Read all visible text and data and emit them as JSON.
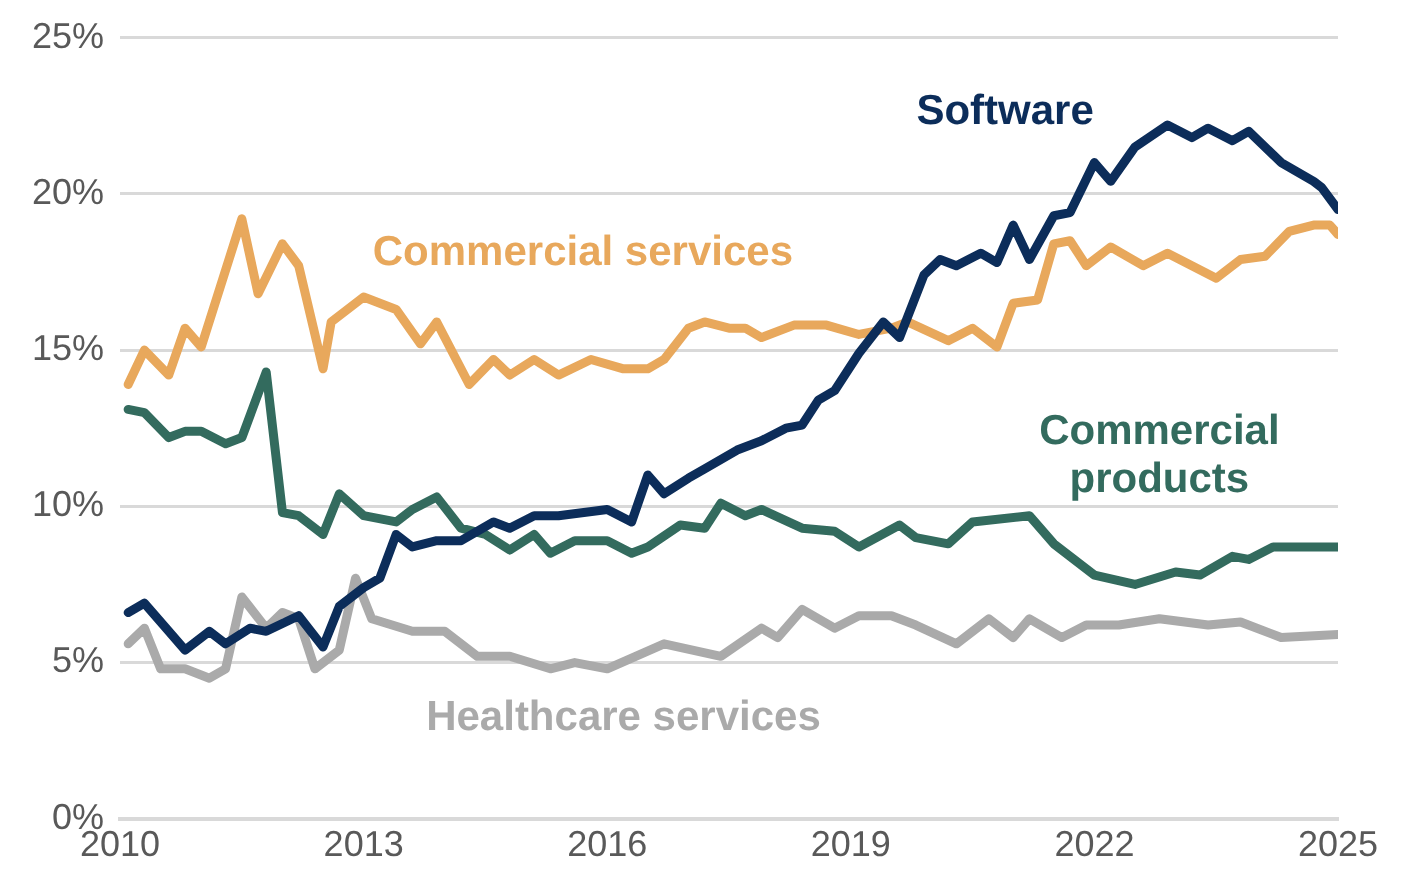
{
  "chart_data": {
    "type": "line",
    "xlim": [
      2010,
      2025
    ],
    "xticks": [
      2010,
      2013,
      2016,
      2019,
      2022,
      2025
    ],
    "ylim": [
      0,
      25
    ],
    "yticks": [
      {
        "value": 0,
        "label": "0%"
      },
      {
        "value": 5,
        "label": "5%"
      },
      {
        "value": 10,
        "label": "10%"
      },
      {
        "value": 15,
        "label": "15%"
      },
      {
        "value": 20,
        "label": "20%"
      },
      {
        "value": 25,
        "label": "25%"
      }
    ],
    "grid": "y",
    "legend": false,
    "marker": "none",
    "line_style": "solid",
    "series": [
      {
        "name": "Software",
        "color": "#0c2d5a",
        "x": [
          2010.1,
          2010.3,
          2010.6,
          2010.8,
          2011.1,
          2011.3,
          2011.6,
          2011.8,
          2012.2,
          2012.5,
          2012.7,
          2013.0,
          2013.2,
          2013.4,
          2013.6,
          2013.9,
          2014.2,
          2014.6,
          2014.8,
          2015.1,
          2015.4,
          2016.0,
          2016.3,
          2016.5,
          2016.7,
          2017.0,
          2017.2,
          2017.6,
          2017.9,
          2018.2,
          2018.4,
          2018.6,
          2018.8,
          2019.1,
          2019.4,
          2019.6,
          2019.9,
          2020.1,
          2020.3,
          2020.6,
          2020.8,
          2021.0,
          2021.2,
          2021.5,
          2021.7,
          2022.0,
          2022.2,
          2022.5,
          2022.9,
          2023.2,
          2023.4,
          2023.7,
          2023.9,
          2024.3,
          2024.7,
          2024.8,
          2025.0
        ],
        "values": [
          6.6,
          6.9,
          6.0,
          5.4,
          6.0,
          5.6,
          6.1,
          6.0,
          6.5,
          5.5,
          6.8,
          7.4,
          7.7,
          9.1,
          8.7,
          8.9,
          8.9,
          9.5,
          9.3,
          9.7,
          9.7,
          9.9,
          9.5,
          11.0,
          10.4,
          10.9,
          11.2,
          11.8,
          12.1,
          12.5,
          12.6,
          13.4,
          13.7,
          14.9,
          15.9,
          15.4,
          17.4,
          17.9,
          17.7,
          18.1,
          17.8,
          19.0,
          17.9,
          19.3,
          19.4,
          21.0,
          20.4,
          21.5,
          22.2,
          21.8,
          22.1,
          21.7,
          22.0,
          21.0,
          20.4,
          20.2,
          19.5
        ]
      },
      {
        "name": "Commercial services",
        "color": "#e8a85c",
        "x": [
          2010.1,
          2010.3,
          2010.6,
          2010.8,
          2011.0,
          2011.5,
          2011.7,
          2012.0,
          2012.2,
          2012.5,
          2012.6,
          2013.0,
          2013.4,
          2013.7,
          2013.9,
          2014.3,
          2014.6,
          2014.8,
          2015.1,
          2015.4,
          2015.8,
          2016.2,
          2016.5,
          2016.7,
          2017.0,
          2017.2,
          2017.5,
          2017.7,
          2017.9,
          2018.3,
          2018.7,
          2019.1,
          2019.5,
          2019.7,
          2020.2,
          2020.5,
          2020.8,
          2021.0,
          2021.3,
          2021.5,
          2021.7,
          2021.9,
          2022.2,
          2022.6,
          2022.9,
          2023.5,
          2023.8,
          2024.1,
          2024.4,
          2024.7,
          2024.9,
          2025.0
        ],
        "values": [
          13.9,
          15.0,
          14.2,
          15.7,
          15.1,
          19.2,
          16.8,
          18.4,
          17.7,
          14.4,
          15.9,
          16.7,
          16.3,
          15.2,
          15.9,
          13.9,
          14.7,
          14.2,
          14.7,
          14.2,
          14.7,
          14.4,
          14.4,
          14.7,
          15.7,
          15.9,
          15.7,
          15.7,
          15.4,
          15.8,
          15.8,
          15.5,
          15.7,
          15.9,
          15.3,
          15.7,
          15.1,
          16.5,
          16.6,
          18.4,
          18.5,
          17.7,
          18.3,
          17.7,
          18.1,
          17.3,
          17.9,
          18.0,
          18.8,
          19.0,
          19.0,
          18.7
        ]
      },
      {
        "name": "Commercial products",
        "color": "#336b5e",
        "x": [
          2010.1,
          2010.3,
          2010.6,
          2010.8,
          2011.0,
          2011.3,
          2011.5,
          2011.8,
          2012.0,
          2012.2,
          2012.5,
          2012.7,
          2013.0,
          2013.4,
          2013.6,
          2013.9,
          2014.2,
          2014.5,
          2014.8,
          2015.1,
          2015.3,
          2015.6,
          2016.0,
          2016.3,
          2016.5,
          2016.9,
          2017.2,
          2017.4,
          2017.7,
          2017.9,
          2018.4,
          2018.8,
          2019.1,
          2019.6,
          2019.8,
          2020.2,
          2020.5,
          2021.2,
          2021.5,
          2022.0,
          2022.5,
          2023.0,
          2023.3,
          2023.7,
          2023.9,
          2024.2,
          2025.0
        ],
        "values": [
          13.1,
          13.0,
          12.2,
          12.4,
          12.4,
          12.0,
          12.2,
          14.3,
          9.8,
          9.7,
          9.1,
          10.4,
          9.7,
          9.5,
          9.9,
          10.3,
          9.3,
          9.1,
          8.6,
          9.1,
          8.5,
          8.9,
          8.9,
          8.5,
          8.7,
          9.4,
          9.3,
          10.1,
          9.7,
          9.9,
          9.3,
          9.2,
          8.7,
          9.4,
          9.0,
          8.8,
          9.5,
          9.7,
          8.8,
          7.8,
          7.5,
          7.9,
          7.8,
          8.4,
          8.3,
          8.7,
          8.7
        ]
      },
      {
        "name": "Healthcare services",
        "color": "#aaaaaa",
        "x": [
          2010.1,
          2010.3,
          2010.5,
          2010.8,
          2011.1,
          2011.3,
          2011.5,
          2011.8,
          2012.0,
          2012.2,
          2012.4,
          2012.7,
          2012.9,
          2013.1,
          2013.6,
          2014.0,
          2014.4,
          2014.8,
          2015.3,
          2015.6,
          2016.0,
          2016.7,
          2017.4,
          2017.9,
          2018.1,
          2018.4,
          2018.8,
          2019.1,
          2019.5,
          2019.8,
          2020.3,
          2020.7,
          2021.0,
          2021.2,
          2021.6,
          2021.9,
          2022.3,
          2022.8,
          2023.4,
          2023.8,
          2024.3,
          2025.0
        ],
        "values": [
          5.6,
          6.1,
          4.8,
          4.8,
          4.5,
          4.8,
          7.1,
          6.1,
          6.6,
          6.4,
          4.8,
          5.4,
          7.7,
          6.4,
          6.0,
          6.0,
          5.2,
          5.2,
          4.8,
          5.0,
          4.8,
          5.6,
          5.2,
          6.1,
          5.8,
          6.7,
          6.1,
          6.5,
          6.5,
          6.2,
          5.6,
          6.4,
          5.8,
          6.4,
          5.8,
          6.2,
          6.2,
          6.4,
          6.2,
          6.3,
          5.8,
          5.9
        ]
      }
    ]
  }
}
